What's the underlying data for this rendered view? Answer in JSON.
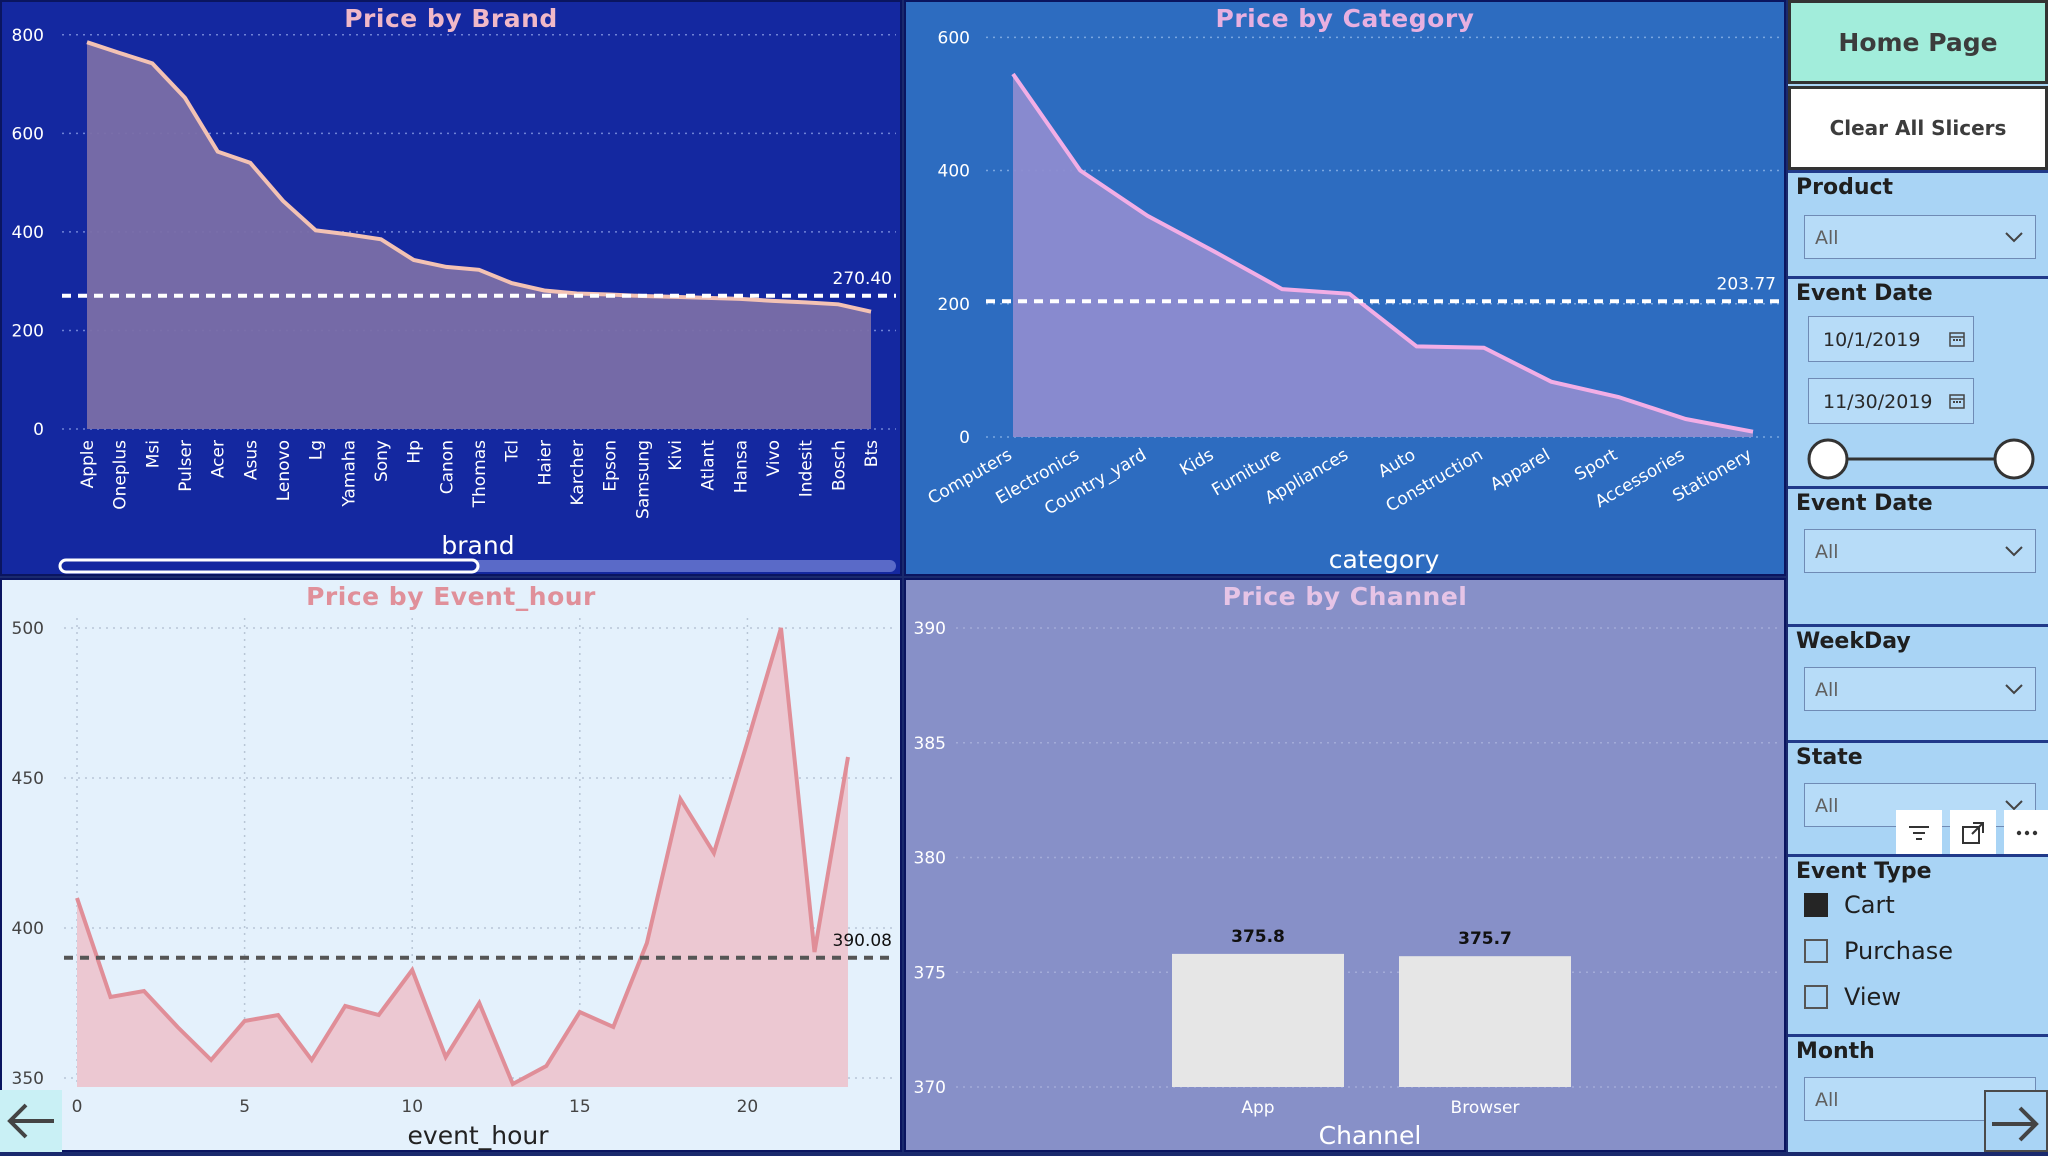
{
  "nav": {
    "home_label": "Home Page",
    "clear_label": "Clear All Slicers"
  },
  "charts": {
    "brand": {
      "title": "Price by Brand",
      "xlabel": "brand",
      "avg_label": "270.40",
      "yticks": [
        "800",
        "600",
        "400",
        "200",
        "0"
      ],
      "colors": {
        "bg": "#1428a0",
        "title": "#f0b8c8",
        "line": "#f3c2b4",
        "fill": "#7a6ea8"
      }
    },
    "category": {
      "title": "Price by Category",
      "xlabel": "category",
      "avg_label": "203.77",
      "yticks": [
        "600",
        "400",
        "200",
        "0"
      ],
      "colors": {
        "bg": "#2d6cc0",
        "title": "#e8b0e0",
        "line": "#f2aee6",
        "fill": "#8d8cd0"
      }
    },
    "hour": {
      "title": "Price by Event_hour",
      "xlabel": "event_hour",
      "avg_label": "390.08",
      "yticks": [
        "500",
        "450",
        "400",
        "350"
      ],
      "xticks": [
        "0",
        "5",
        "10",
        "15",
        "20"
      ],
      "colors": {
        "bg": "#e4f1fc",
        "title": "#e0909a",
        "line": "#e08e98",
        "fill": "#ecc8d2"
      }
    },
    "channel": {
      "title": "Price by Channel",
      "xlabel": "Channel",
      "yticks": [
        "390",
        "385",
        "380",
        "375",
        "370"
      ],
      "colors": {
        "bg": "#8790c8",
        "title": "#e6c4e6",
        "bar": "#e6e6e6"
      }
    }
  },
  "chart_data": [
    {
      "type": "area",
      "title": "Price by Brand",
      "xlabel": "brand",
      "ylim": [
        0,
        830
      ],
      "categories": [
        "Apple",
        "Oneplus",
        "Msi",
        "Pulser",
        "Acer",
        "Asus",
        "Lenovo",
        "Lg",
        "Yamaha",
        "Sony",
        "Hp",
        "Canon",
        "Thomas",
        "Tcl",
        "Haier",
        "Karcher",
        "Epson",
        "Samsung",
        "Kivi",
        "Atlant",
        "Hansa",
        "Vivo",
        "Indesit",
        "Bosch",
        "Bts"
      ],
      "values": [
        785,
        763,
        742,
        672,
        563,
        540,
        463,
        403,
        395,
        385,
        343,
        329,
        323,
        296,
        281,
        275,
        273,
        270,
        268,
        266,
        264,
        260,
        257,
        253,
        238
      ],
      "average": 270.4,
      "grid": true
    },
    {
      "type": "area",
      "title": "Price by Category",
      "xlabel": "category",
      "ylim": [
        0,
        620
      ],
      "categories": [
        "Computers",
        "Electronics",
        "Country_yard",
        "Kids",
        "Furniture",
        "Appliances",
        "Auto",
        "Construction",
        "Apparel",
        "Sport",
        "Accessories",
        "Stationery"
      ],
      "values": [
        545,
        400,
        332,
        278,
        222,
        215,
        136,
        134,
        83,
        60,
        27,
        8
      ],
      "average": 203.77,
      "grid": true
    },
    {
      "type": "area",
      "title": "Price by Event_hour",
      "xlabel": "event_hour",
      "ylim": [
        347,
        500
      ],
      "x": [
        0,
        1,
        2,
        3,
        4,
        5,
        6,
        7,
        8,
        9,
        10,
        11,
        12,
        13,
        14,
        15,
        16,
        17,
        18,
        19,
        20,
        21,
        22,
        23
      ],
      "values": [
        410,
        377,
        379,
        367,
        356,
        369,
        371,
        356,
        374,
        371,
        386,
        357,
        375,
        348,
        354,
        372,
        367,
        395,
        443,
        425,
        462,
        500,
        392,
        457
      ],
      "average": 390.08,
      "grid": true
    },
    {
      "type": "bar",
      "title": "Price by Channel",
      "xlabel": "Channel",
      "ylim": [
        370,
        390
      ],
      "categories": [
        "App",
        "Browser"
      ],
      "values": [
        375.8,
        375.7
      ],
      "data_labels": [
        "375.8",
        "375.7"
      ],
      "grid": true
    }
  ],
  "slicers": {
    "product": {
      "title": "Product",
      "value": "All"
    },
    "event_date_range": {
      "title": "Event Date",
      "start": "10/1/2019",
      "end": "11/30/2019"
    },
    "event_date": {
      "title": "Event Date",
      "value": "All"
    },
    "weekday": {
      "title": "WeekDay",
      "value": "All"
    },
    "state": {
      "title": "State",
      "value": "All"
    },
    "event_type": {
      "title": "Event Type",
      "options": [
        {
          "label": "Cart",
          "checked": true
        },
        {
          "label": "Purchase",
          "checked": false
        },
        {
          "label": "View",
          "checked": false
        }
      ]
    },
    "month": {
      "title": "Month",
      "value": "All"
    }
  },
  "icons": {
    "filter": "filter-icon",
    "focus": "focus-mode-icon",
    "more": "more-options-icon",
    "back": "arrow-left-icon",
    "next": "arrow-right-icon"
  }
}
